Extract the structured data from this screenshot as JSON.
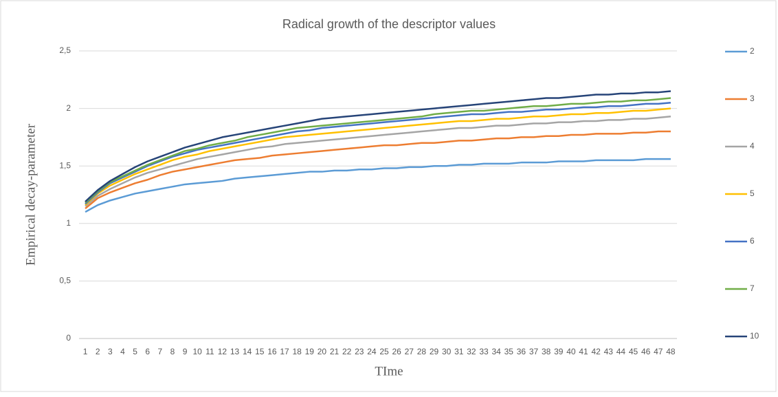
{
  "chart_data": {
    "type": "line",
    "title": "Radical growth of the descriptor values",
    "x_label": "TIme",
    "y_label": "Empirical  decay-parameter",
    "categories": [
      "1",
      "2",
      "3",
      "4",
      "5",
      "6",
      "7",
      "8",
      "9",
      "10",
      "11",
      "12",
      "13",
      "14",
      "15",
      "16",
      "17",
      "18",
      "19",
      "20",
      "21",
      "22",
      "23",
      "24",
      "25",
      "26",
      "27",
      "28",
      "29",
      "30",
      "31",
      "32",
      "33",
      "34",
      "35",
      "36",
      "37",
      "38",
      "39",
      "40",
      "41",
      "42",
      "43",
      "44",
      "45",
      "46",
      "47",
      "48"
    ],
    "ylim": [
      0,
      2.5
    ],
    "yticks": [
      0,
      {
        "value": 0.5,
        "label": "0,5"
      },
      1,
      {
        "value": 1.5,
        "label": "1,5"
      },
      2,
      {
        "value": 2.5,
        "label": "2,5"
      }
    ],
    "grid": true,
    "legend": "right",
    "series": [
      {
        "name": "2",
        "color": "#5b9bd5",
        "values": [
          1.1,
          1.16,
          1.2,
          1.23,
          1.26,
          1.28,
          1.3,
          1.32,
          1.34,
          1.35,
          1.36,
          1.37,
          1.39,
          1.4,
          1.41,
          1.42,
          1.43,
          1.44,
          1.45,
          1.45,
          1.46,
          1.46,
          1.47,
          1.47,
          1.48,
          1.48,
          1.49,
          1.49,
          1.5,
          1.5,
          1.51,
          1.51,
          1.52,
          1.52,
          1.52,
          1.53,
          1.53,
          1.53,
          1.54,
          1.54,
          1.54,
          1.55,
          1.55,
          1.55,
          1.55,
          1.56,
          1.56,
          1.56
        ]
      },
      {
        "name": "3",
        "color": "#ed7d31",
        "values": [
          1.13,
          1.22,
          1.27,
          1.31,
          1.35,
          1.38,
          1.42,
          1.45,
          1.47,
          1.49,
          1.51,
          1.53,
          1.55,
          1.56,
          1.57,
          1.59,
          1.6,
          1.61,
          1.62,
          1.63,
          1.64,
          1.65,
          1.66,
          1.67,
          1.68,
          1.68,
          1.69,
          1.7,
          1.7,
          1.71,
          1.72,
          1.72,
          1.73,
          1.74,
          1.74,
          1.75,
          1.75,
          1.76,
          1.76,
          1.77,
          1.77,
          1.78,
          1.78,
          1.78,
          1.79,
          1.79,
          1.8,
          1.8
        ]
      },
      {
        "name": "4",
        "color": "#a5a5a5",
        "values": [
          1.15,
          1.24,
          1.3,
          1.35,
          1.4,
          1.44,
          1.47,
          1.5,
          1.53,
          1.56,
          1.58,
          1.6,
          1.62,
          1.64,
          1.66,
          1.67,
          1.69,
          1.7,
          1.71,
          1.72,
          1.73,
          1.74,
          1.75,
          1.76,
          1.77,
          1.78,
          1.79,
          1.8,
          1.81,
          1.82,
          1.83,
          1.83,
          1.84,
          1.85,
          1.85,
          1.86,
          1.87,
          1.87,
          1.88,
          1.88,
          1.89,
          1.89,
          1.9,
          1.9,
          1.91,
          1.91,
          1.92,
          1.93
        ]
      },
      {
        "name": "5",
        "color": "#ffc000",
        "values": [
          1.16,
          1.26,
          1.33,
          1.38,
          1.43,
          1.47,
          1.51,
          1.55,
          1.58,
          1.6,
          1.63,
          1.65,
          1.67,
          1.69,
          1.71,
          1.73,
          1.75,
          1.76,
          1.77,
          1.78,
          1.79,
          1.8,
          1.81,
          1.82,
          1.83,
          1.84,
          1.85,
          1.86,
          1.87,
          1.88,
          1.89,
          1.89,
          1.9,
          1.91,
          1.91,
          1.92,
          1.93,
          1.93,
          1.94,
          1.95,
          1.95,
          1.96,
          1.96,
          1.97,
          1.98,
          1.98,
          1.99,
          2.0
        ]
      },
      {
        "name": "6",
        "color": "#4472c4",
        "values": [
          1.17,
          1.27,
          1.35,
          1.4,
          1.45,
          1.5,
          1.54,
          1.58,
          1.61,
          1.64,
          1.66,
          1.68,
          1.7,
          1.72,
          1.74,
          1.76,
          1.78,
          1.8,
          1.81,
          1.83,
          1.84,
          1.85,
          1.86,
          1.87,
          1.88,
          1.89,
          1.9,
          1.91,
          1.92,
          1.93,
          1.94,
          1.95,
          1.95,
          1.96,
          1.97,
          1.97,
          1.98,
          1.99,
          1.99,
          2.0,
          2.01,
          2.01,
          2.02,
          2.02,
          2.03,
          2.04,
          2.04,
          2.05
        ]
      },
      {
        "name": "7",
        "color": "#70ad47",
        "values": [
          1.18,
          1.28,
          1.36,
          1.41,
          1.46,
          1.51,
          1.55,
          1.59,
          1.63,
          1.65,
          1.68,
          1.7,
          1.72,
          1.75,
          1.77,
          1.79,
          1.81,
          1.83,
          1.84,
          1.85,
          1.86,
          1.87,
          1.88,
          1.89,
          1.9,
          1.91,
          1.92,
          1.93,
          1.95,
          1.96,
          1.97,
          1.98,
          1.98,
          1.99,
          2.0,
          2.01,
          2.02,
          2.02,
          2.03,
          2.04,
          2.04,
          2.05,
          2.06,
          2.06,
          2.07,
          2.07,
          2.08,
          2.09
        ]
      },
      {
        "name": "10",
        "color": "#264478",
        "values": [
          1.19,
          1.29,
          1.37,
          1.43,
          1.49,
          1.54,
          1.58,
          1.62,
          1.66,
          1.69,
          1.72,
          1.75,
          1.77,
          1.79,
          1.81,
          1.83,
          1.85,
          1.87,
          1.89,
          1.91,
          1.92,
          1.93,
          1.94,
          1.95,
          1.96,
          1.97,
          1.98,
          1.99,
          2.0,
          2.01,
          2.02,
          2.03,
          2.04,
          2.05,
          2.06,
          2.07,
          2.08,
          2.09,
          2.09,
          2.1,
          2.11,
          2.12,
          2.12,
          2.13,
          2.13,
          2.14,
          2.14,
          2.15
        ]
      }
    ]
  }
}
